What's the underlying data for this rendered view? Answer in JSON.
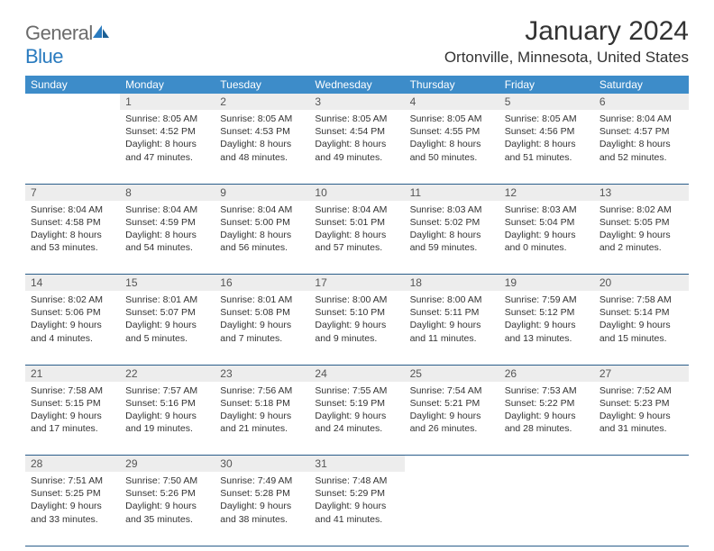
{
  "brand": {
    "part1": "General",
    "part2": "Blue"
  },
  "title": "January 2024",
  "location": "Ortonville, Minnesota, United States",
  "colors": {
    "header_bg": "#3d8cc9",
    "header_fg": "#ffffff",
    "daynum_bg": "#ededed",
    "rule": "#2a5d8a",
    "logo_gray": "#6b6b6b",
    "logo_blue": "#2a7bbf",
    "background": "#ffffff"
  },
  "weekdays": [
    "Sunday",
    "Monday",
    "Tuesday",
    "Wednesday",
    "Thursday",
    "Friday",
    "Saturday"
  ],
  "weeks": [
    {
      "nums": [
        "",
        "1",
        "2",
        "3",
        "4",
        "5",
        "6"
      ],
      "cells": [
        null,
        {
          "sunrise": "8:05 AM",
          "sunset": "4:52 PM",
          "dl1": "Daylight: 8 hours",
          "dl2": "and 47 minutes."
        },
        {
          "sunrise": "8:05 AM",
          "sunset": "4:53 PM",
          "dl1": "Daylight: 8 hours",
          "dl2": "and 48 minutes."
        },
        {
          "sunrise": "8:05 AM",
          "sunset": "4:54 PM",
          "dl1": "Daylight: 8 hours",
          "dl2": "and 49 minutes."
        },
        {
          "sunrise": "8:05 AM",
          "sunset": "4:55 PM",
          "dl1": "Daylight: 8 hours",
          "dl2": "and 50 minutes."
        },
        {
          "sunrise": "8:05 AM",
          "sunset": "4:56 PM",
          "dl1": "Daylight: 8 hours",
          "dl2": "and 51 minutes."
        },
        {
          "sunrise": "8:04 AM",
          "sunset": "4:57 PM",
          "dl1": "Daylight: 8 hours",
          "dl2": "and 52 minutes."
        }
      ]
    },
    {
      "nums": [
        "7",
        "8",
        "9",
        "10",
        "11",
        "12",
        "13"
      ],
      "cells": [
        {
          "sunrise": "8:04 AM",
          "sunset": "4:58 PM",
          "dl1": "Daylight: 8 hours",
          "dl2": "and 53 minutes."
        },
        {
          "sunrise": "8:04 AM",
          "sunset": "4:59 PM",
          "dl1": "Daylight: 8 hours",
          "dl2": "and 54 minutes."
        },
        {
          "sunrise": "8:04 AM",
          "sunset": "5:00 PM",
          "dl1": "Daylight: 8 hours",
          "dl2": "and 56 minutes."
        },
        {
          "sunrise": "8:04 AM",
          "sunset": "5:01 PM",
          "dl1": "Daylight: 8 hours",
          "dl2": "and 57 minutes."
        },
        {
          "sunrise": "8:03 AM",
          "sunset": "5:02 PM",
          "dl1": "Daylight: 8 hours",
          "dl2": "and 59 minutes."
        },
        {
          "sunrise": "8:03 AM",
          "sunset": "5:04 PM",
          "dl1": "Daylight: 9 hours",
          "dl2": "and 0 minutes."
        },
        {
          "sunrise": "8:02 AM",
          "sunset": "5:05 PM",
          "dl1": "Daylight: 9 hours",
          "dl2": "and 2 minutes."
        }
      ]
    },
    {
      "nums": [
        "14",
        "15",
        "16",
        "17",
        "18",
        "19",
        "20"
      ],
      "cells": [
        {
          "sunrise": "8:02 AM",
          "sunset": "5:06 PM",
          "dl1": "Daylight: 9 hours",
          "dl2": "and 4 minutes."
        },
        {
          "sunrise": "8:01 AM",
          "sunset": "5:07 PM",
          "dl1": "Daylight: 9 hours",
          "dl2": "and 5 minutes."
        },
        {
          "sunrise": "8:01 AM",
          "sunset": "5:08 PM",
          "dl1": "Daylight: 9 hours",
          "dl2": "and 7 minutes."
        },
        {
          "sunrise": "8:00 AM",
          "sunset": "5:10 PM",
          "dl1": "Daylight: 9 hours",
          "dl2": "and 9 minutes."
        },
        {
          "sunrise": "8:00 AM",
          "sunset": "5:11 PM",
          "dl1": "Daylight: 9 hours",
          "dl2": "and 11 minutes."
        },
        {
          "sunrise": "7:59 AM",
          "sunset": "5:12 PM",
          "dl1": "Daylight: 9 hours",
          "dl2": "and 13 minutes."
        },
        {
          "sunrise": "7:58 AM",
          "sunset": "5:14 PM",
          "dl1": "Daylight: 9 hours",
          "dl2": "and 15 minutes."
        }
      ]
    },
    {
      "nums": [
        "21",
        "22",
        "23",
        "24",
        "25",
        "26",
        "27"
      ],
      "cells": [
        {
          "sunrise": "7:58 AM",
          "sunset": "5:15 PM",
          "dl1": "Daylight: 9 hours",
          "dl2": "and 17 minutes."
        },
        {
          "sunrise": "7:57 AM",
          "sunset": "5:16 PM",
          "dl1": "Daylight: 9 hours",
          "dl2": "and 19 minutes."
        },
        {
          "sunrise": "7:56 AM",
          "sunset": "5:18 PM",
          "dl1": "Daylight: 9 hours",
          "dl2": "and 21 minutes."
        },
        {
          "sunrise": "7:55 AM",
          "sunset": "5:19 PM",
          "dl1": "Daylight: 9 hours",
          "dl2": "and 24 minutes."
        },
        {
          "sunrise": "7:54 AM",
          "sunset": "5:21 PM",
          "dl1": "Daylight: 9 hours",
          "dl2": "and 26 minutes."
        },
        {
          "sunrise": "7:53 AM",
          "sunset": "5:22 PM",
          "dl1": "Daylight: 9 hours",
          "dl2": "and 28 minutes."
        },
        {
          "sunrise": "7:52 AM",
          "sunset": "5:23 PM",
          "dl1": "Daylight: 9 hours",
          "dl2": "and 31 minutes."
        }
      ]
    },
    {
      "nums": [
        "28",
        "29",
        "30",
        "31",
        "",
        "",
        ""
      ],
      "cells": [
        {
          "sunrise": "7:51 AM",
          "sunset": "5:25 PM",
          "dl1": "Daylight: 9 hours",
          "dl2": "and 33 minutes."
        },
        {
          "sunrise": "7:50 AM",
          "sunset": "5:26 PM",
          "dl1": "Daylight: 9 hours",
          "dl2": "and 35 minutes."
        },
        {
          "sunrise": "7:49 AM",
          "sunset": "5:28 PM",
          "dl1": "Daylight: 9 hours",
          "dl2": "and 38 minutes."
        },
        {
          "sunrise": "7:48 AM",
          "sunset": "5:29 PM",
          "dl1": "Daylight: 9 hours",
          "dl2": "and 41 minutes."
        },
        null,
        null,
        null
      ]
    }
  ],
  "labels": {
    "sunrise": "Sunrise:",
    "sunset": "Sunset:"
  }
}
